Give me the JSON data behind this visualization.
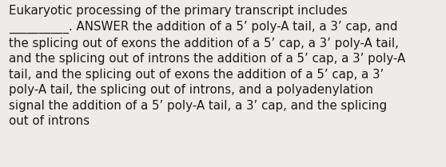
{
  "text": "Eukaryotic processing of the primary transcript includes\n__________. ANSWER the addition of a 5ʼ poly-A tail, a 3ʼ cap, and\nthe splicing out of exons the addition of a 5ʼ cap, a 3ʼ poly-A tail,\nand the splicing out of introns the addition of a 5ʼ cap, a 3ʼ poly-A\ntail, and the splicing out of exons the addition of a 5ʼ cap, a 3ʼ\npoly-A tail, the splicing out of introns, and a polyadenylation\nsignal the addition of a 5ʼ poly-A tail, a 3ʼ cap, and the splicing\nout of introns",
  "bg_color": "#eeecea",
  "text_color": "#1a1a1a",
  "font_size": 10.8,
  "fig_width": 5.58,
  "fig_height": 2.09,
  "dpi": 100
}
